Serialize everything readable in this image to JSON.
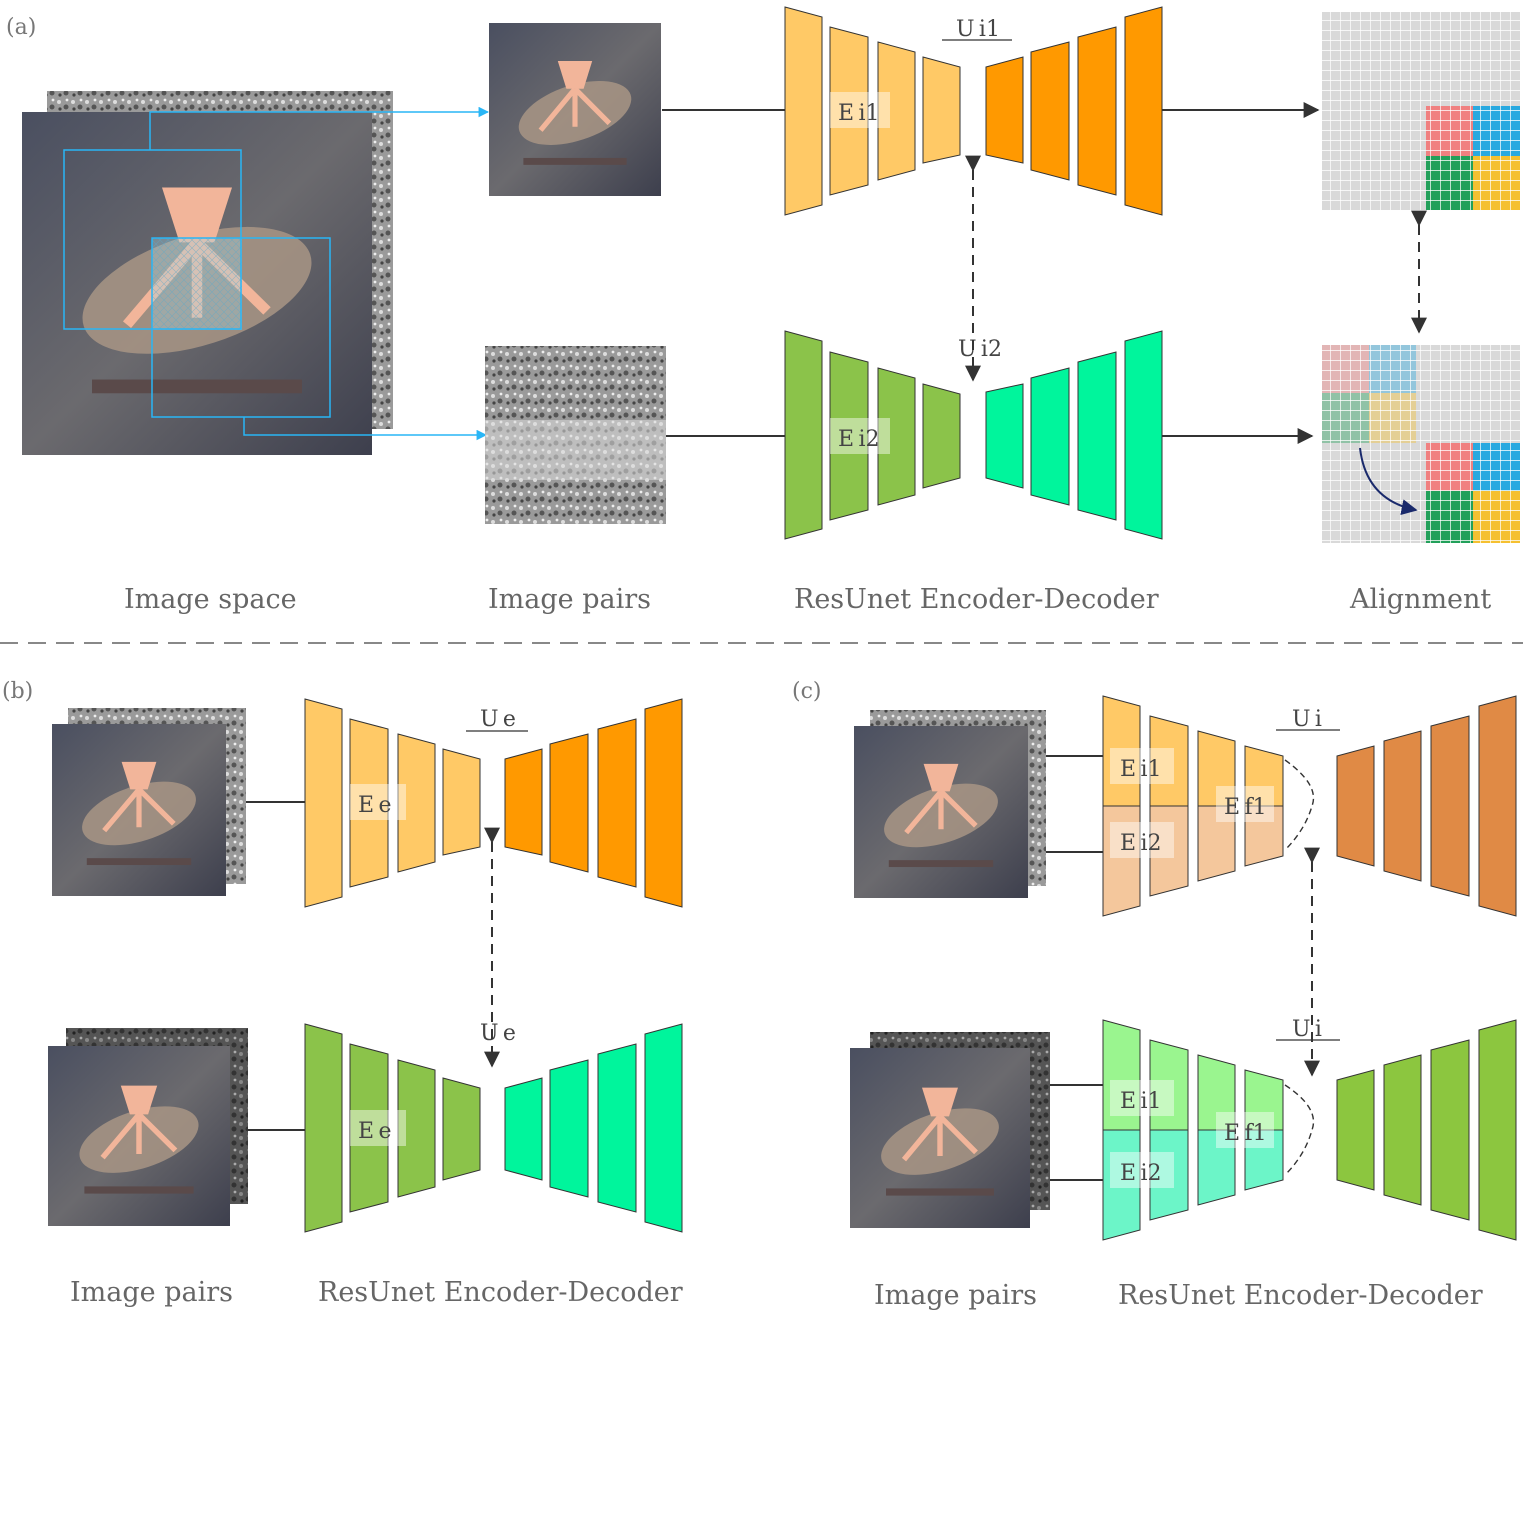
{
  "panel_labels": {
    "a": "(a)",
    "b": "(b)",
    "c": "(c)"
  },
  "captions": {
    "image_space": "Image space",
    "image_pairs_a": "Image pairs",
    "encoder_decoder_a": "ResUnet Encoder-Decoder",
    "alignment": "Alignment",
    "image_pairs_b": "Image pairs",
    "encoder_decoder_b": "ResUnet Encoder-Decoder",
    "image_pairs_c": "Image pairs",
    "encoder_decoder_c": "ResUnet Encoder-Decoder"
  },
  "module_labels": {
    "a_top_encoder": "E i1",
    "a_top_u": "U i1",
    "a_bottom_encoder": "E i2",
    "a_bottom_u": "U i2",
    "b_top_encoder": "E e",
    "b_top_u": "U e",
    "b_bottom_encoder": "E e",
    "b_bottom_u": "U e",
    "c_top_e1": "E i1",
    "c_top_e2": "E i2",
    "c_top_fuse": "E f1",
    "c_top_u": "U i",
    "c_bottom_e1": "E i1",
    "c_bottom_e2": "E i2",
    "c_bottom_fuse": "E f1",
    "c_bottom_u": "U i"
  },
  "colors": {
    "encoder_yellow": "#ffc966",
    "decoder_orange": "#ff9900",
    "encoder_green": "#8bc34a",
    "decoder_teal": "#00f59c",
    "grid_gray": "#d9d9d9",
    "grid_red": "#f08080",
    "grid_blue": "#29a9e0",
    "grid_green": "#22a05a",
    "grid_yellow": "#f5c030",
    "crop_box": "#29b6f6"
  }
}
